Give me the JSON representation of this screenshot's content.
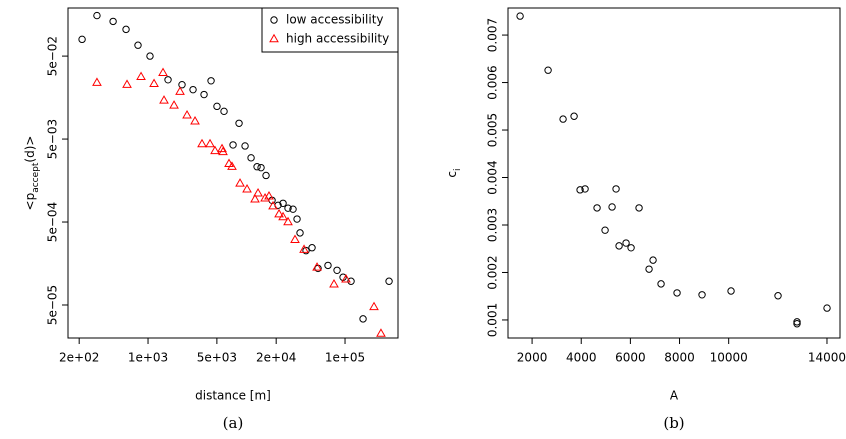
{
  "chart_data": [
    {
      "type": "scatter",
      "caption": "(a)",
      "xlabel": "distance [m]",
      "ylabel": [
        "<p",
        "accept",
        "(d)>"
      ],
      "xlog": true,
      "ylog": true,
      "legend": "topright",
      "xlim": [
        154,
        345000
      ],
      "ylim": [
        2e-05,
        0.19
      ],
      "xticks": [
        {
          "value": 200,
          "label": "2e+02"
        },
        {
          "value": 1000,
          "label": "1e+03"
        },
        {
          "value": 5000,
          "label": "5e+03"
        },
        {
          "value": 20000,
          "label": "2e+04"
        },
        {
          "value": 100000,
          "label": "1e+05"
        }
      ],
      "yticks": [
        {
          "value": 0.05,
          "label": "5e−02"
        },
        {
          "value": 0.005,
          "label": "5e−03"
        },
        {
          "value": 0.0005,
          "label": "5e−04"
        },
        {
          "value": 5e-05,
          "label": "5e−05"
        }
      ],
      "series": [
        {
          "name": "low accessibility",
          "color": "#000000",
          "marker": "circle",
          "x": [
            214,
            303,
            442,
            598,
            791,
            1047,
            1596,
            2213,
            2864,
            3704,
            4363,
            5012,
            5910,
            7295,
            8395,
            9661,
            11117,
            12793,
            14040,
            15776,
            18155,
            20893,
            23490,
            26380,
            29650,
            32570,
            34920,
            40180,
            46240,
            53210,
            67140,
            82980,
            95500,
            115100,
            152400,
            279900
          ],
          "values": [
            0.0796,
            0.154,
            0.131,
            0.105,
            0.0676,
            0.05,
            0.0259,
            0.0226,
            0.0197,
            0.0172,
            0.0252,
            0.0124,
            0.0108,
            0.00425,
            0.00775,
            0.00413,
            0.00297,
            0.00232,
            0.00226,
            0.00182,
            0.000914,
            0.000796,
            0.000841,
            0.000734,
            0.000714,
            0.000543,
            0.00037,
            0.000226,
            0.000245,
            0.000138,
            0.00015,
            0.000131,
            0.000108,
            9.66e-05,
            3.4e-05,
            9.66e-05
          ]
        },
        {
          "name": "high accessibility",
          "color": "#ff0000",
          "marker": "triangle",
          "x": [
            303,
            612,
            849,
            1151,
            1419,
            1453,
            1837,
            2113,
            2489,
            3000,
            3532,
            4259,
            4786,
            5640,
            5770,
            6640,
            7120,
            8590,
            10120,
            12190,
            13090,
            15420,
            16910,
            18580,
            21380,
            23490,
            26380,
            31050,
            38370,
            51990,
            77270,
            102300,
            196800,
            231700
          ],
          "values": [
            0.0239,
            0.0226,
            0.0281,
            0.0232,
            0.0314,
            0.0146,
            0.0127,
            0.0186,
            0.00966,
            0.00818,
            0.00436,
            0.00436,
            0.0036,
            0.0038,
            0.0035,
            0.00252,
            0.00232,
            0.00146,
            0.00124,
            0.00094,
            0.00111,
            0.000966,
            0.00102,
            0.000775,
            0.000622,
            0.000574,
            0.0005,
            0.000305,
            0.000232,
            0.000142,
            8.89e-05,
            0.000102,
            4.73e-05,
            2.26e-05
          ]
        }
      ]
    },
    {
      "type": "scatter",
      "caption": "(b)",
      "xlabel": "A",
      "ylabel": [
        "c",
        "i"
      ],
      "xlim": [
        1020,
        14530
      ],
      "ylim": [
        0.00062,
        0.00757
      ],
      "xticks": [
        2000,
        4000,
        6000,
        8000,
        10000,
        14000
      ],
      "yticks": [
        0.001,
        0.002,
        0.003,
        0.004,
        0.005,
        0.006,
        0.007
      ],
      "color": "#000000",
      "marker": "circle",
      "x": [
        1512,
        2651,
        3261,
        3709,
        3953,
        4156,
        4644,
        4970,
        5255,
        5417,
        5540,
        5824,
        6028,
        6353,
        6760,
        6923,
        7248,
        7899,
        8916,
        10096,
        12008,
        12781,
        12781,
        14002
      ],
      "values": [
        0.0074,
        0.00626,
        0.00523,
        0.00529,
        0.00374,
        0.00376,
        0.00336,
        0.00289,
        0.00338,
        0.00376,
        0.00256,
        0.00262,
        0.00252,
        0.00336,
        0.00207,
        0.00226,
        0.00176,
        0.00157,
        0.00153,
        0.00161,
        0.00151,
        0.00096,
        0.00092,
        0.00125
      ]
    }
  ]
}
